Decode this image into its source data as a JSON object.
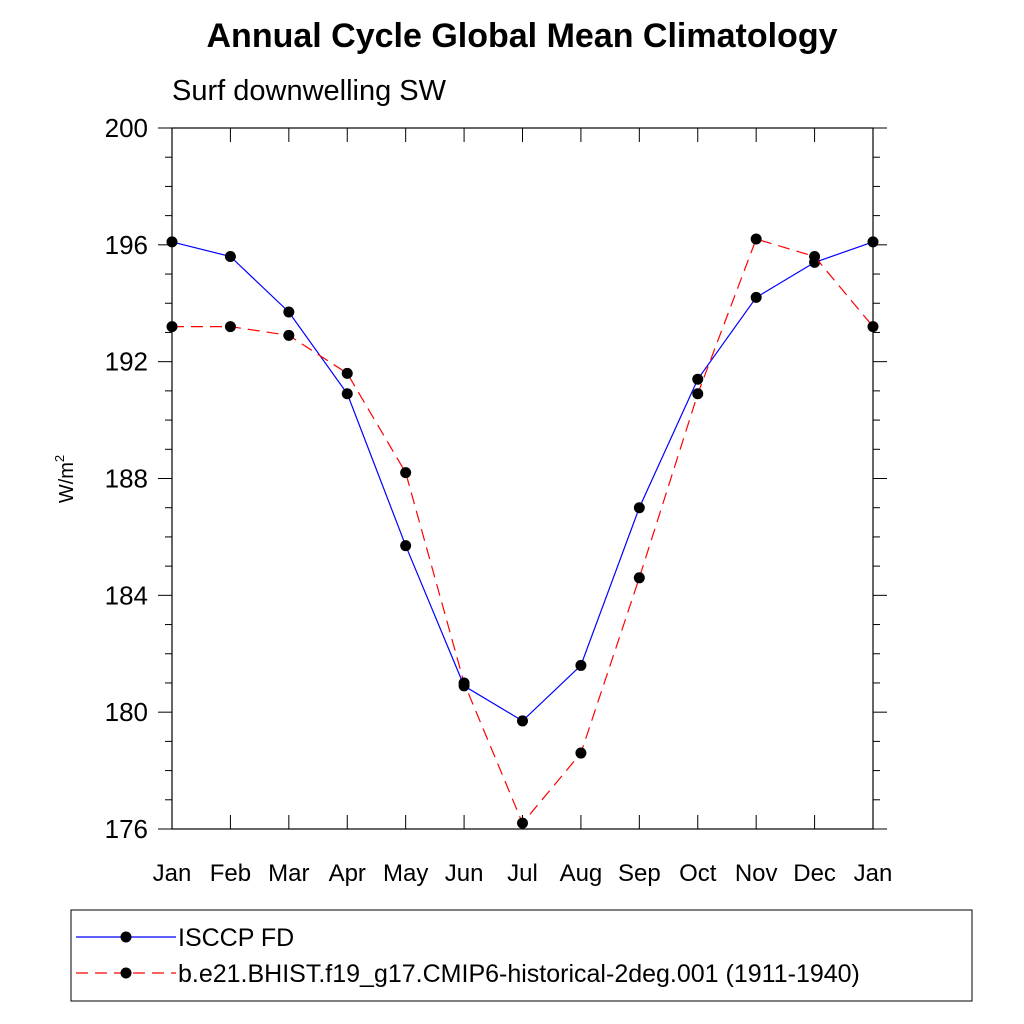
{
  "chart_data": {
    "type": "line",
    "title": "Annual Cycle Global Mean Climatology",
    "subtitle": "Surf downwelling SW",
    "xlabel": "",
    "ylabel": "W/m",
    "ylabel_superscript": "2",
    "categories": [
      "Jan",
      "Feb",
      "Mar",
      "Apr",
      "May",
      "Jun",
      "Jul",
      "Aug",
      "Sep",
      "Oct",
      "Nov",
      "Dec",
      "Jan"
    ],
    "ylim": [
      176,
      200
    ],
    "yticks": [
      176,
      180,
      184,
      188,
      192,
      196,
      200
    ],
    "yminor_step": 1,
    "grid": false,
    "legend_placement": "bottom",
    "series": [
      {
        "name": "ISCCP FD",
        "color": "#0000ff",
        "style": "solid",
        "marker": "filled-circle",
        "values": [
          196.1,
          195.6,
          193.7,
          190.9,
          185.7,
          180.9,
          179.7,
          181.6,
          187.0,
          191.4,
          194.2,
          195.4,
          196.1
        ]
      },
      {
        "name": "b.e21.BHIST.f19_g17.CMIP6-historical-2deg.001 (1911-1940)",
        "color": "#ff0000",
        "style": "dashed",
        "marker": "filled-circle",
        "values": [
          193.2,
          193.2,
          192.9,
          191.6,
          188.2,
          181.0,
          176.2,
          178.6,
          184.6,
          190.9,
          196.2,
          195.6,
          193.2
        ]
      }
    ]
  }
}
